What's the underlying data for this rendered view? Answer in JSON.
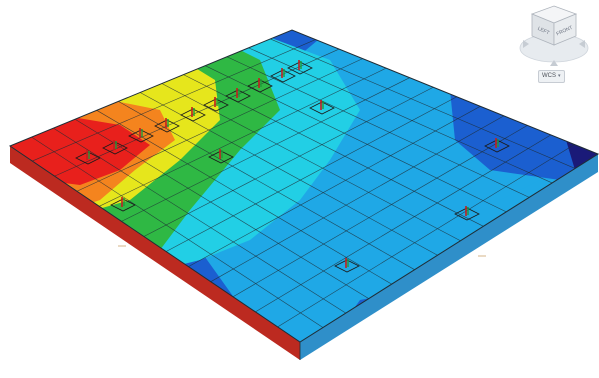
{
  "viewcube": {
    "face_left": "LEFT",
    "face_front": "FRONT",
    "icon": "viewcube-icon"
  },
  "wcs": {
    "label": "WCS",
    "icon": "chevron-down-icon"
  },
  "model": {
    "colors": {
      "red": "#e8201c",
      "orange": "#f4841e",
      "yellow": "#e6e61c",
      "green": "#2fb844",
      "cyan": "#22cfe5",
      "lightblue": "#1fa8e6",
      "blue": "#1b5fd0",
      "navy": "#1a1a78",
      "edge": "#3e6b80",
      "grid": "#1f2d36"
    }
  }
}
